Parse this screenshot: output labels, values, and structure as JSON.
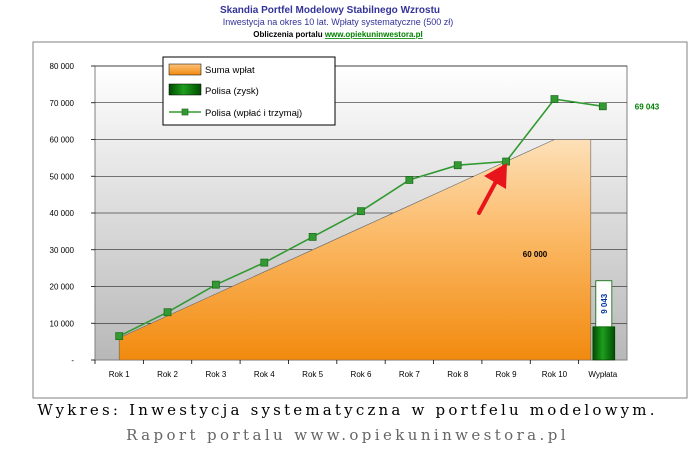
{
  "chart_data": {
    "type": "area",
    "title": "Skandia Portfel Modelowy Stabilnego Wzrostu",
    "subtitle": "Inwestycja na okres 10 lat. Wpłaty systematyczne (500 zł)",
    "source_prefix": "Obliczenia portalu ",
    "source_link": "www.opiekuninwestora.pl",
    "categories": [
      "Rok 1",
      "Rok 2",
      "Rok 3",
      "Rok 4",
      "Rok 5",
      "Rok 6",
      "Rok 7",
      "Rok 8",
      "Rok 9",
      "Rok 10",
      "Wypłata"
    ],
    "y_ticks": [
      "-",
      "10 000",
      "20 000",
      "30 000",
      "40 000",
      "50 000",
      "60 000",
      "70 000",
      "80 000"
    ],
    "ylim": [
      0,
      80000
    ],
    "grid": true,
    "legend_position": "top-left",
    "series": [
      {
        "name": "Suma wpłat",
        "type": "area",
        "color": "#f7941d",
        "values": [
          6000,
          12000,
          18000,
          24000,
          30000,
          36000,
          42000,
          48000,
          54000,
          60000,
          60000
        ]
      },
      {
        "name": "Polisa (zysk)",
        "type": "bar",
        "color": "#006600",
        "values": [
          null,
          null,
          null,
          null,
          null,
          null,
          null,
          null,
          null,
          null,
          9043
        ]
      },
      {
        "name": "Polisa (wpłać i trzymaj)",
        "type": "line",
        "color": "#339933",
        "values": [
          6500,
          13000,
          20500,
          26500,
          33500,
          40500,
          49000,
          53000,
          54000,
          71000,
          69043
        ]
      }
    ],
    "annotations": {
      "area_total_label": "60 000",
      "final_value_label": "69 043",
      "profit_label": "9 043"
    }
  },
  "captions": {
    "line1": "Wykres: Inwestycja systematyczna w portfelu modelowym.",
    "line2": "Raport portalu www.opiekuninwestora.pl"
  },
  "colors": {
    "title": "#333399",
    "link": "#008000",
    "arrow": "#e8141b",
    "plot_bg": "#c0c0c0",
    "frame": "#808080"
  }
}
